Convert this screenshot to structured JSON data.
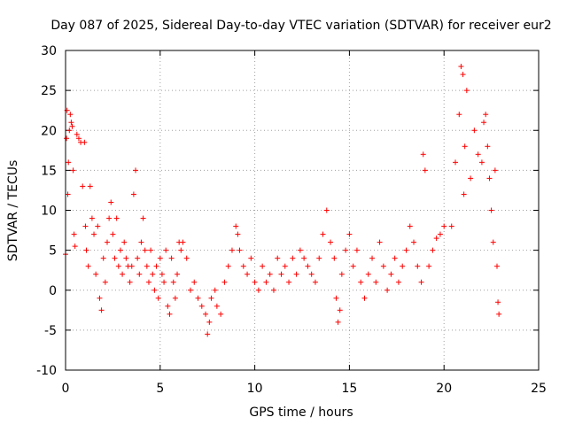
{
  "colors": {
    "series": "#ff0000",
    "grid": "#a0a0a0",
    "axis": "#000000"
  },
  "chart_data": {
    "type": "scatter",
    "title": "Day 087 of 2025, Sidereal Day-to-day VTEC variation (SDTVAR) for receiver eur2",
    "xlabel": "GPS time / hours",
    "ylabel": "SDTVAR / TECUs",
    "xlim": [
      0,
      25
    ],
    "ylim": [
      -10,
      30
    ],
    "xticks": [
      0,
      5,
      10,
      15,
      20,
      25
    ],
    "yticks": [
      -10,
      -5,
      0,
      5,
      10,
      15,
      20,
      25,
      30
    ],
    "grid": true,
    "marker": "plus",
    "series": [
      {
        "name": "SDTVAR",
        "points": [
          [
            0.0,
            4.5
          ],
          [
            0.05,
            19
          ],
          [
            0.08,
            22.5
          ],
          [
            0.12,
            12
          ],
          [
            0.15,
            16
          ],
          [
            0.2,
            20
          ],
          [
            0.25,
            22
          ],
          [
            0.3,
            21
          ],
          [
            0.35,
            20.5
          ],
          [
            0.4,
            15
          ],
          [
            0.45,
            7
          ],
          [
            0.5,
            5.5
          ],
          [
            0.6,
            19.5
          ],
          [
            0.7,
            19
          ],
          [
            0.8,
            18.5
          ],
          [
            0.9,
            13
          ],
          [
            1.0,
            18.5
          ],
          [
            1.05,
            8
          ],
          [
            1.1,
            5
          ],
          [
            1.2,
            3
          ],
          [
            1.3,
            13
          ],
          [
            1.4,
            9
          ],
          [
            1.5,
            7
          ],
          [
            1.6,
            2
          ],
          [
            1.7,
            8
          ],
          [
            1.8,
            -1
          ],
          [
            1.9,
            -2.5
          ],
          [
            2.0,
            4
          ],
          [
            2.1,
            1
          ],
          [
            2.2,
            6
          ],
          [
            2.3,
            9
          ],
          [
            2.4,
            11
          ],
          [
            2.5,
            7
          ],
          [
            2.6,
            4
          ],
          [
            2.7,
            9
          ],
          [
            2.8,
            3
          ],
          [
            2.9,
            5
          ],
          [
            3.0,
            2
          ],
          [
            3.1,
            6
          ],
          [
            3.2,
            4
          ],
          [
            3.3,
            3
          ],
          [
            3.4,
            1
          ],
          [
            3.5,
            3
          ],
          [
            3.6,
            12
          ],
          [
            3.7,
            15
          ],
          [
            3.8,
            4
          ],
          [
            3.9,
            2
          ],
          [
            4.0,
            6
          ],
          [
            4.1,
            9
          ],
          [
            4.2,
            5
          ],
          [
            4.3,
            3
          ],
          [
            4.4,
            1
          ],
          [
            4.5,
            5
          ],
          [
            4.6,
            2
          ],
          [
            4.7,
            0
          ],
          [
            4.8,
            3
          ],
          [
            4.9,
            -1
          ],
          [
            5.0,
            4
          ],
          [
            5.1,
            2
          ],
          [
            5.2,
            1
          ],
          [
            5.3,
            5
          ],
          [
            5.4,
            -2
          ],
          [
            5.5,
            -3
          ],
          [
            5.6,
            4
          ],
          [
            5.7,
            1
          ],
          [
            5.8,
            -1
          ],
          [
            5.9,
            2
          ],
          [
            6.0,
            6
          ],
          [
            6.1,
            5
          ],
          [
            6.2,
            6
          ],
          [
            6.4,
            4
          ],
          [
            6.6,
            0
          ],
          [
            6.8,
            1
          ],
          [
            7.0,
            -1
          ],
          [
            7.2,
            -2
          ],
          [
            7.4,
            -3
          ],
          [
            7.5,
            -5.5
          ],
          [
            7.6,
            -4
          ],
          [
            7.7,
            -1
          ],
          [
            7.9,
            0
          ],
          [
            8.0,
            -2
          ],
          [
            8.2,
            -3
          ],
          [
            8.4,
            1
          ],
          [
            8.6,
            3
          ],
          [
            8.8,
            5
          ],
          [
            9.0,
            8
          ],
          [
            9.1,
            7
          ],
          [
            9.2,
            5
          ],
          [
            9.4,
            3
          ],
          [
            9.6,
            2
          ],
          [
            9.8,
            4
          ],
          [
            10.0,
            1
          ],
          [
            10.2,
            0
          ],
          [
            10.4,
            3
          ],
          [
            10.6,
            1
          ],
          [
            10.8,
            2
          ],
          [
            11.0,
            0
          ],
          [
            11.2,
            4
          ],
          [
            11.4,
            2
          ],
          [
            11.6,
            3
          ],
          [
            11.8,
            1
          ],
          [
            12.0,
            4
          ],
          [
            12.2,
            2
          ],
          [
            12.4,
            5
          ],
          [
            12.6,
            4
          ],
          [
            12.8,
            3
          ],
          [
            13.0,
            2
          ],
          [
            13.2,
            1
          ],
          [
            13.4,
            4
          ],
          [
            13.6,
            7
          ],
          [
            13.8,
            10
          ],
          [
            14.0,
            6
          ],
          [
            14.2,
            4
          ],
          [
            14.3,
            -1
          ],
          [
            14.4,
            -4
          ],
          [
            14.5,
            -2.5
          ],
          [
            14.6,
            2
          ],
          [
            14.8,
            5
          ],
          [
            15.0,
            7
          ],
          [
            15.2,
            3
          ],
          [
            15.4,
            5
          ],
          [
            15.6,
            1
          ],
          [
            15.8,
            -1
          ],
          [
            16.0,
            2
          ],
          [
            16.2,
            4
          ],
          [
            16.4,
            1
          ],
          [
            16.6,
            6
          ],
          [
            16.8,
            3
          ],
          [
            17.0,
            0
          ],
          [
            17.2,
            2
          ],
          [
            17.4,
            4
          ],
          [
            17.6,
            1
          ],
          [
            17.8,
            3
          ],
          [
            18.0,
            5
          ],
          [
            18.2,
            8
          ],
          [
            18.4,
            6
          ],
          [
            18.6,
            3
          ],
          [
            18.8,
            1
          ],
          [
            18.9,
            17
          ],
          [
            19.0,
            15
          ],
          [
            19.2,
            3
          ],
          [
            19.4,
            5
          ],
          [
            19.6,
            6.5
          ],
          [
            19.8,
            7
          ],
          [
            20.0,
            8
          ],
          [
            20.4,
            8
          ],
          [
            20.6,
            16
          ],
          [
            20.8,
            22
          ],
          [
            20.9,
            28
          ],
          [
            21.0,
            27
          ],
          [
            21.05,
            12
          ],
          [
            21.1,
            18
          ],
          [
            21.2,
            25
          ],
          [
            21.4,
            14
          ],
          [
            21.6,
            20
          ],
          [
            21.8,
            17
          ],
          [
            22.0,
            16
          ],
          [
            22.1,
            21
          ],
          [
            22.2,
            22
          ],
          [
            22.3,
            18
          ],
          [
            22.4,
            14
          ],
          [
            22.5,
            10
          ],
          [
            22.6,
            6
          ],
          [
            22.7,
            15
          ],
          [
            22.8,
            3
          ],
          [
            22.85,
            -1.5
          ],
          [
            22.9,
            -3
          ]
        ]
      }
    ]
  }
}
